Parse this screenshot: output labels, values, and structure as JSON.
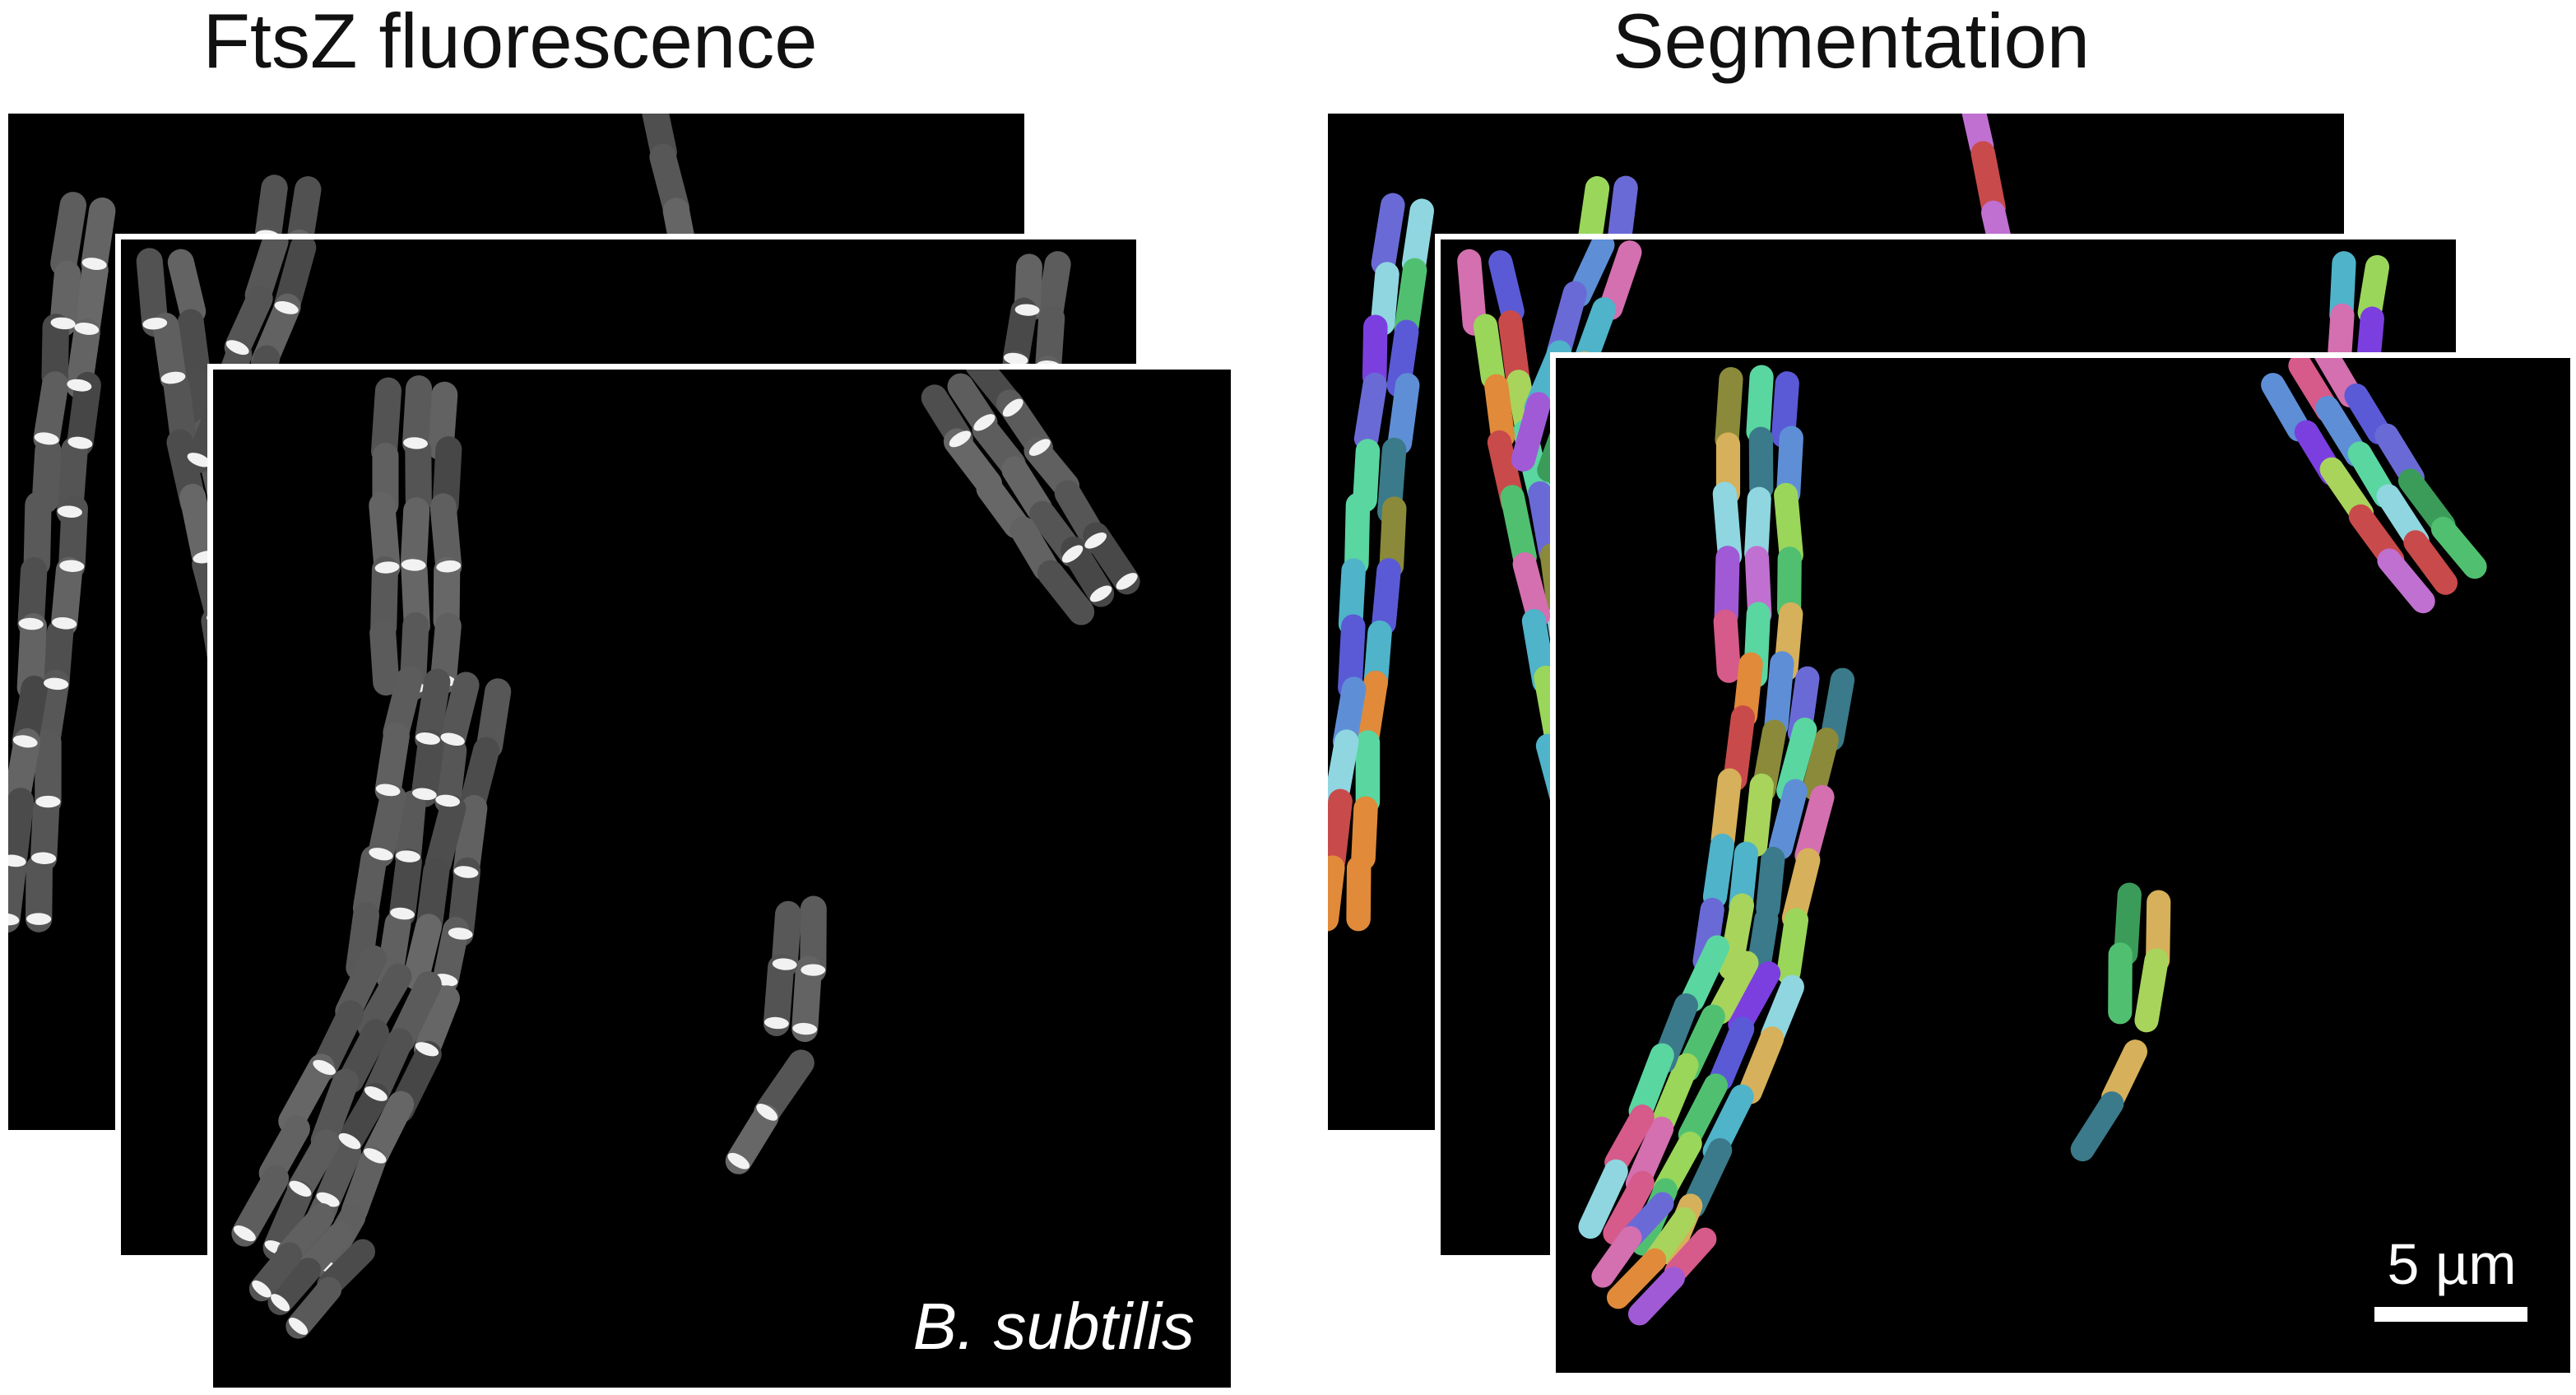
{
  "panels": {
    "left": {
      "title": "FtsZ fluorescence",
      "species_label": "B. subtilis"
    },
    "right": {
      "title": "Segmentation",
      "scale_bar_label": "5 µm"
    }
  },
  "colors": {
    "background": "#ffffff",
    "image_background": "#000000",
    "cell_fluorescence": "#5a5a5a",
    "ftsz_ring": "#f2f2f2",
    "segmentation_palette": [
      "#5e8fd6",
      "#7b3fe0",
      "#3b9c5a",
      "#c94a4a",
      "#a8d45c",
      "#4fb3c9",
      "#d46fb0",
      "#8a8a3a",
      "#3a7a8a",
      "#e08a3a",
      "#a05ad6",
      "#5ad6a0",
      "#d65a8a",
      "#6a6ad6",
      "#9ad65a",
      "#d6b05a",
      "#5a5ad6",
      "#8fd6e0",
      "#c070d0",
      "#50c070"
    ]
  }
}
